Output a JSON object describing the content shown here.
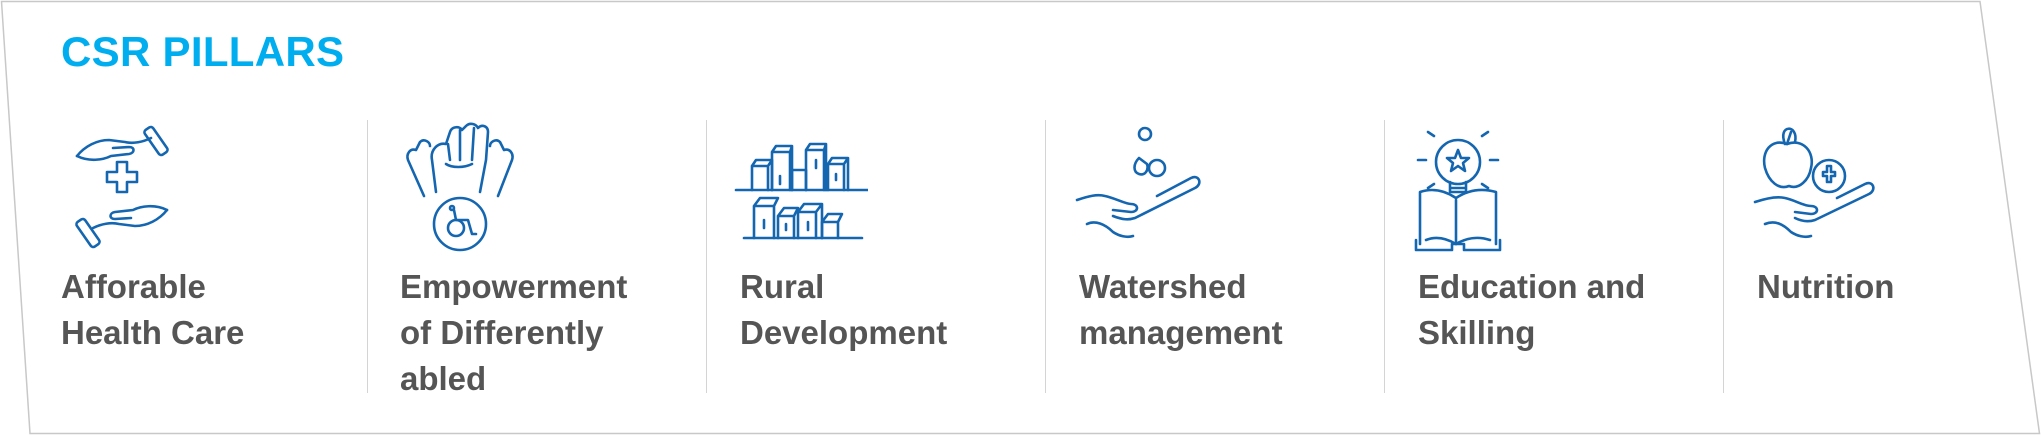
{
  "title": "CSR PILLARS",
  "pillars": [
    {
      "icon": "hands-medical-cross-icon",
      "lines": [
        "Afforable",
        "Health Care"
      ]
    },
    {
      "icon": "raised-fists-wheelchair-icon",
      "lines": [
        "Empowerment",
        "of Differently",
        "abled"
      ]
    },
    {
      "icon": "village-buildings-icon",
      "lines": [
        "Rural",
        "Development"
      ]
    },
    {
      "icon": "hand-water-drops-icon",
      "lines": [
        "Watershed",
        "management"
      ]
    },
    {
      "icon": "lightbulb-book-icon",
      "lines": [
        "Education and",
        "Skilling"
      ]
    },
    {
      "icon": "apple-hand-cross-icon",
      "lines": [
        "Nutrition"
      ]
    }
  ],
  "colors": {
    "title": "#00aeef",
    "icon": "#1466b0",
    "text": "#555555",
    "divider": "#d4d4d4",
    "border": "#c8c8c8"
  }
}
